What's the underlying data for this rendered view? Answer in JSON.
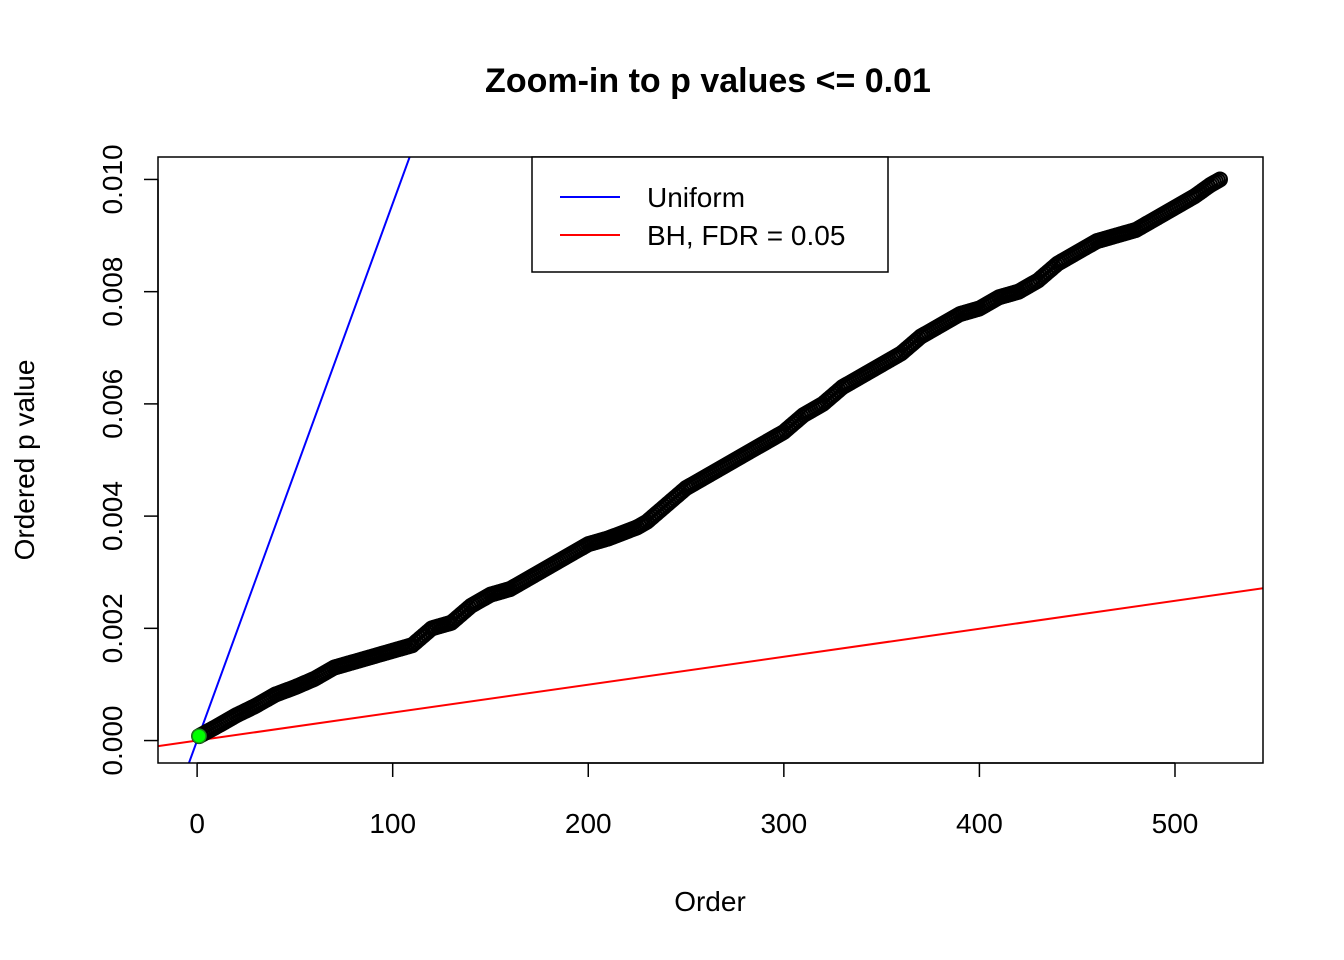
{
  "chart_data": {
    "type": "scatter",
    "title": "Zoom-in to p values <= 0.01",
    "xlabel": "Order",
    "ylabel": "Ordered p value",
    "xlim": [
      -20,
      545
    ],
    "ylim": [
      -0.0004,
      0.0104
    ],
    "x_ticks": [
      0,
      100,
      200,
      300,
      400,
      500
    ],
    "y_ticks": [
      0.0,
      0.002,
      0.004,
      0.006,
      0.008,
      0.01
    ],
    "x_tick_labels": [
      "0",
      "100",
      "200",
      "300",
      "400",
      "500"
    ],
    "y_tick_labels": [
      "0.000",
      "0.002",
      "0.004",
      "0.006",
      "0.008",
      "0.010"
    ],
    "grid": false,
    "legend_position": "top-center",
    "series": [
      {
        "kind": "points",
        "marker": "open-circle",
        "color": "#000000",
        "n": 523,
        "anchors": [
          [
            1,
            8e-05
          ],
          [
            10,
            0.00025
          ],
          [
            20,
            0.00045
          ],
          [
            30,
            0.00062
          ],
          [
            40,
            0.00082
          ],
          [
            50,
            0.00095
          ],
          [
            60,
            0.0011
          ],
          [
            70,
            0.0013
          ],
          [
            80,
            0.0014
          ],
          [
            90,
            0.0015
          ],
          [
            100,
            0.0016
          ],
          [
            110,
            0.0017
          ],
          [
            115,
            0.00185
          ],
          [
            120,
            0.002
          ],
          [
            130,
            0.0021
          ],
          [
            140,
            0.0024
          ],
          [
            150,
            0.0026
          ],
          [
            160,
            0.0027
          ],
          [
            170,
            0.0029
          ],
          [
            180,
            0.0031
          ],
          [
            190,
            0.0033
          ],
          [
            200,
            0.0035
          ],
          [
            210,
            0.0036
          ],
          [
            225,
            0.0038
          ],
          [
            230,
            0.0039
          ],
          [
            240,
            0.0042
          ],
          [
            250,
            0.0045
          ],
          [
            260,
            0.0047
          ],
          [
            270,
            0.0049
          ],
          [
            280,
            0.0051
          ],
          [
            290,
            0.0053
          ],
          [
            300,
            0.0055
          ],
          [
            310,
            0.0058
          ],
          [
            320,
            0.006
          ],
          [
            330,
            0.0063
          ],
          [
            340,
            0.0065
          ],
          [
            350,
            0.0067
          ],
          [
            360,
            0.0069
          ],
          [
            370,
            0.0072
          ],
          [
            380,
            0.0074
          ],
          [
            390,
            0.0076
          ],
          [
            400,
            0.0077
          ],
          [
            410,
            0.0079
          ],
          [
            420,
            0.008
          ],
          [
            430,
            0.0082
          ],
          [
            440,
            0.0085
          ],
          [
            450,
            0.0087
          ],
          [
            460,
            0.0089
          ],
          [
            470,
            0.009
          ],
          [
            480,
            0.0091
          ],
          [
            490,
            0.0093
          ],
          [
            500,
            0.0095
          ],
          [
            510,
            0.0097
          ],
          [
            518,
            0.0099
          ],
          [
            523,
            0.01
          ]
        ]
      },
      {
        "kind": "highlight-point",
        "color": "#00ff00",
        "x": 1,
        "y": 8e-05
      }
    ],
    "lines": [
      {
        "name": "Uniform",
        "color": "#0000ff",
        "intercept": 0,
        "slope": 9.57e-05
      },
      {
        "name": "BH, FDR = 0.05",
        "color": "#ff0000",
        "intercept": 0,
        "slope": 4.98e-06
      }
    ]
  }
}
